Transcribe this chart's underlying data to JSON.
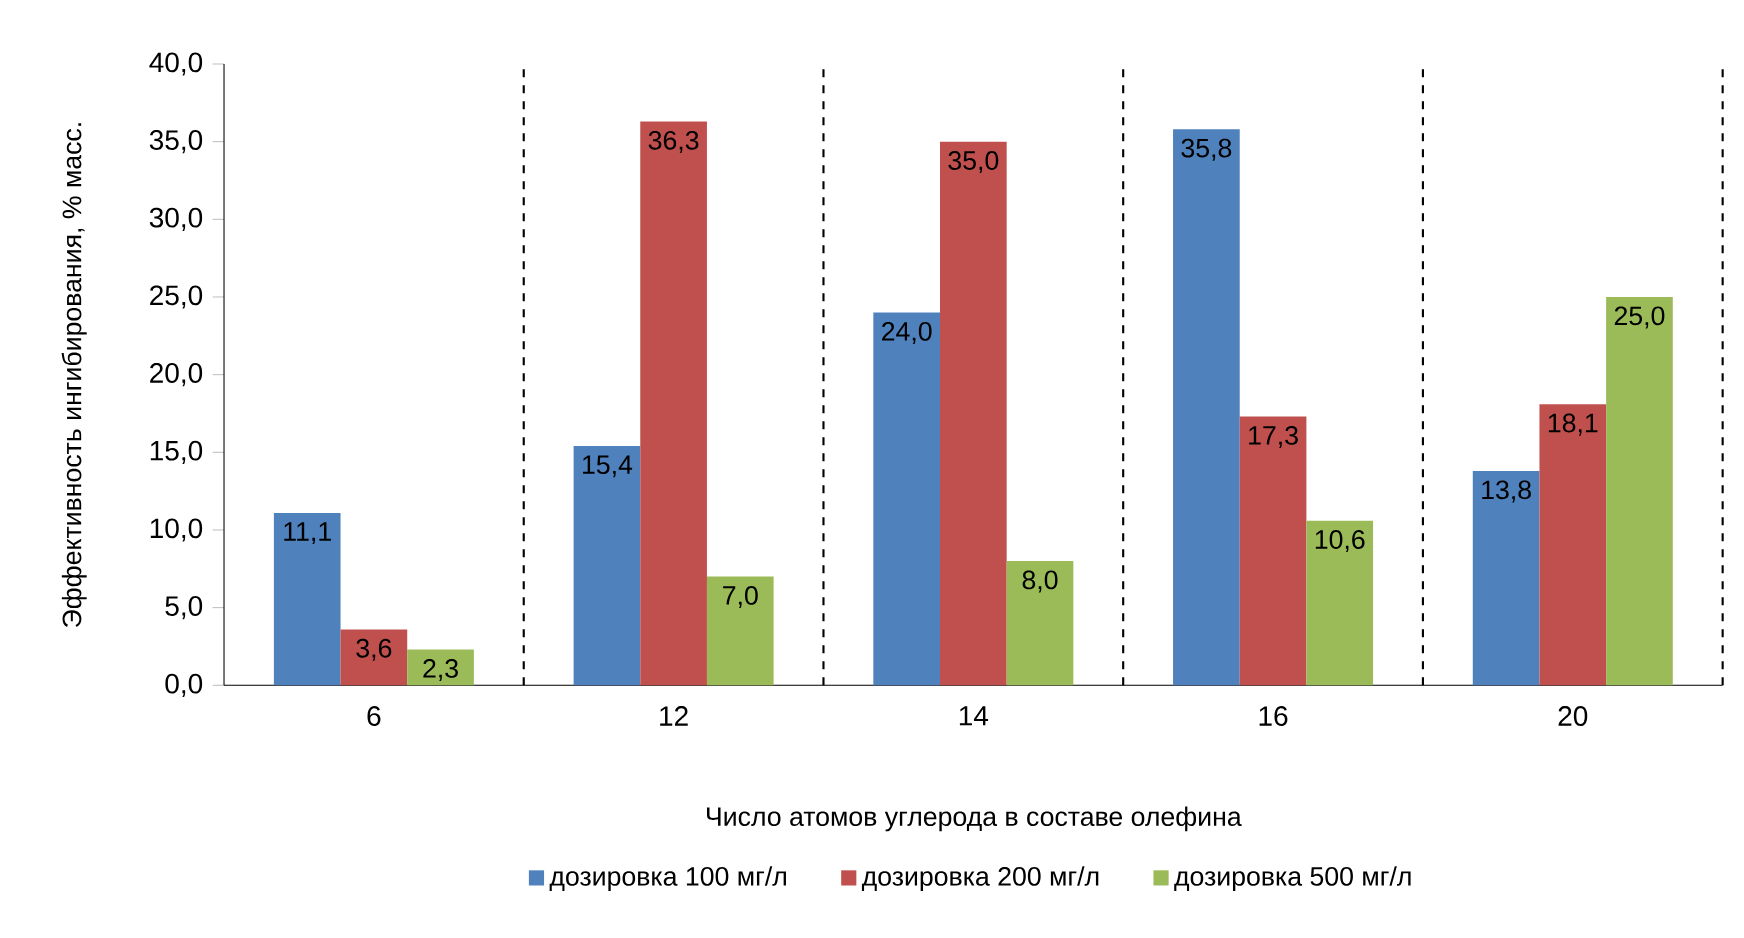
{
  "chart_data": {
    "type": "bar",
    "xlabel": "Число атомов углерода в составе олефина",
    "ylabel": "Эффективность ингибирования, % масс.",
    "categories": [
      "6",
      "12",
      "14",
      "16",
      "20"
    ],
    "series": [
      {
        "name": "дозировка 100 мг/л",
        "color": "#4f81bd",
        "values": [
          11.1,
          15.4,
          24.0,
          35.8,
          13.8
        ],
        "value_labels": [
          "11,1",
          "15,4",
          "24,0",
          "35,8",
          "13,8"
        ]
      },
      {
        "name": "дозировка 200 мг/л",
        "color": "#c0504d",
        "values": [
          3.6,
          36.3,
          35.0,
          17.3,
          18.1
        ],
        "value_labels": [
          "3,6",
          "36,3",
          "35,0",
          "17,3",
          "18,1"
        ]
      },
      {
        "name": "дозировка 500 мг/л",
        "color": "#9bbb59",
        "values": [
          2.3,
          7.0,
          8.0,
          10.6,
          25.0
        ],
        "value_labels": [
          "2,3",
          "7,0",
          "8,0",
          "10,6",
          "25,0"
        ]
      }
    ],
    "ylim": [
      0,
      40
    ],
    "yticks": [
      {
        "value": 0,
        "label": "0,0"
      },
      {
        "value": 5,
        "label": "5,0"
      },
      {
        "value": 10,
        "label": "10,0"
      },
      {
        "value": 15,
        "label": "15,0"
      },
      {
        "value": 20,
        "label": "20,0"
      },
      {
        "value": 25,
        "label": "25,0"
      },
      {
        "value": 30,
        "label": "30,0"
      },
      {
        "value": 35,
        "label": "35,0"
      },
      {
        "value": 40,
        "label": "40,0"
      }
    ],
    "grid": "x",
    "legend": "bottom"
  }
}
